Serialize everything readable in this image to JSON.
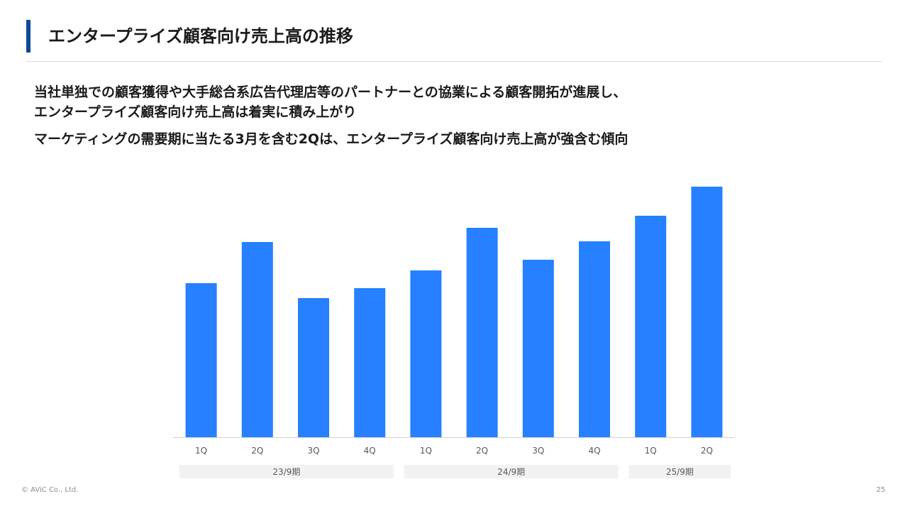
{
  "header": {
    "title": "エンタープライズ顧客向け売上高の推移"
  },
  "body": {
    "line1": "当社単独での顧客獲得や大手総合系広告代理店等のパートナーとの協業による顧客開拓が進展し、",
    "line2": "エンタープライズ顧客向け売上高は着実に積み上がり",
    "line3": "マーケティングの需要期に当たる3月を含む2Qは、エンタープライズ顧客向け売上高が強含む傾向"
  },
  "chart_data": {
    "type": "bar",
    "categories": [
      "1Q",
      "2Q",
      "3Q",
      "4Q",
      "1Q",
      "2Q",
      "3Q",
      "4Q",
      "1Q",
      "2Q"
    ],
    "groups": [
      {
        "label": "23/9期",
        "span": [
          0,
          3
        ]
      },
      {
        "label": "24/9期",
        "span": [
          4,
          7
        ]
      },
      {
        "label": "25/9期",
        "span": [
          8,
          9
        ]
      }
    ],
    "values": [
      217,
      275,
      196,
      210,
      235,
      295,
      250,
      276,
      312,
      353
    ],
    "ylim": [
      0,
      380
    ],
    "bar_color": "#2680ff",
    "group_band_color": "#f2f2f2",
    "axis_color": "#d0d0d0",
    "tick_color": "#595959",
    "grid": false,
    "legend": false
  },
  "footer": {
    "copyright": "© AViC Co., Ltd.",
    "page_number": "25"
  }
}
